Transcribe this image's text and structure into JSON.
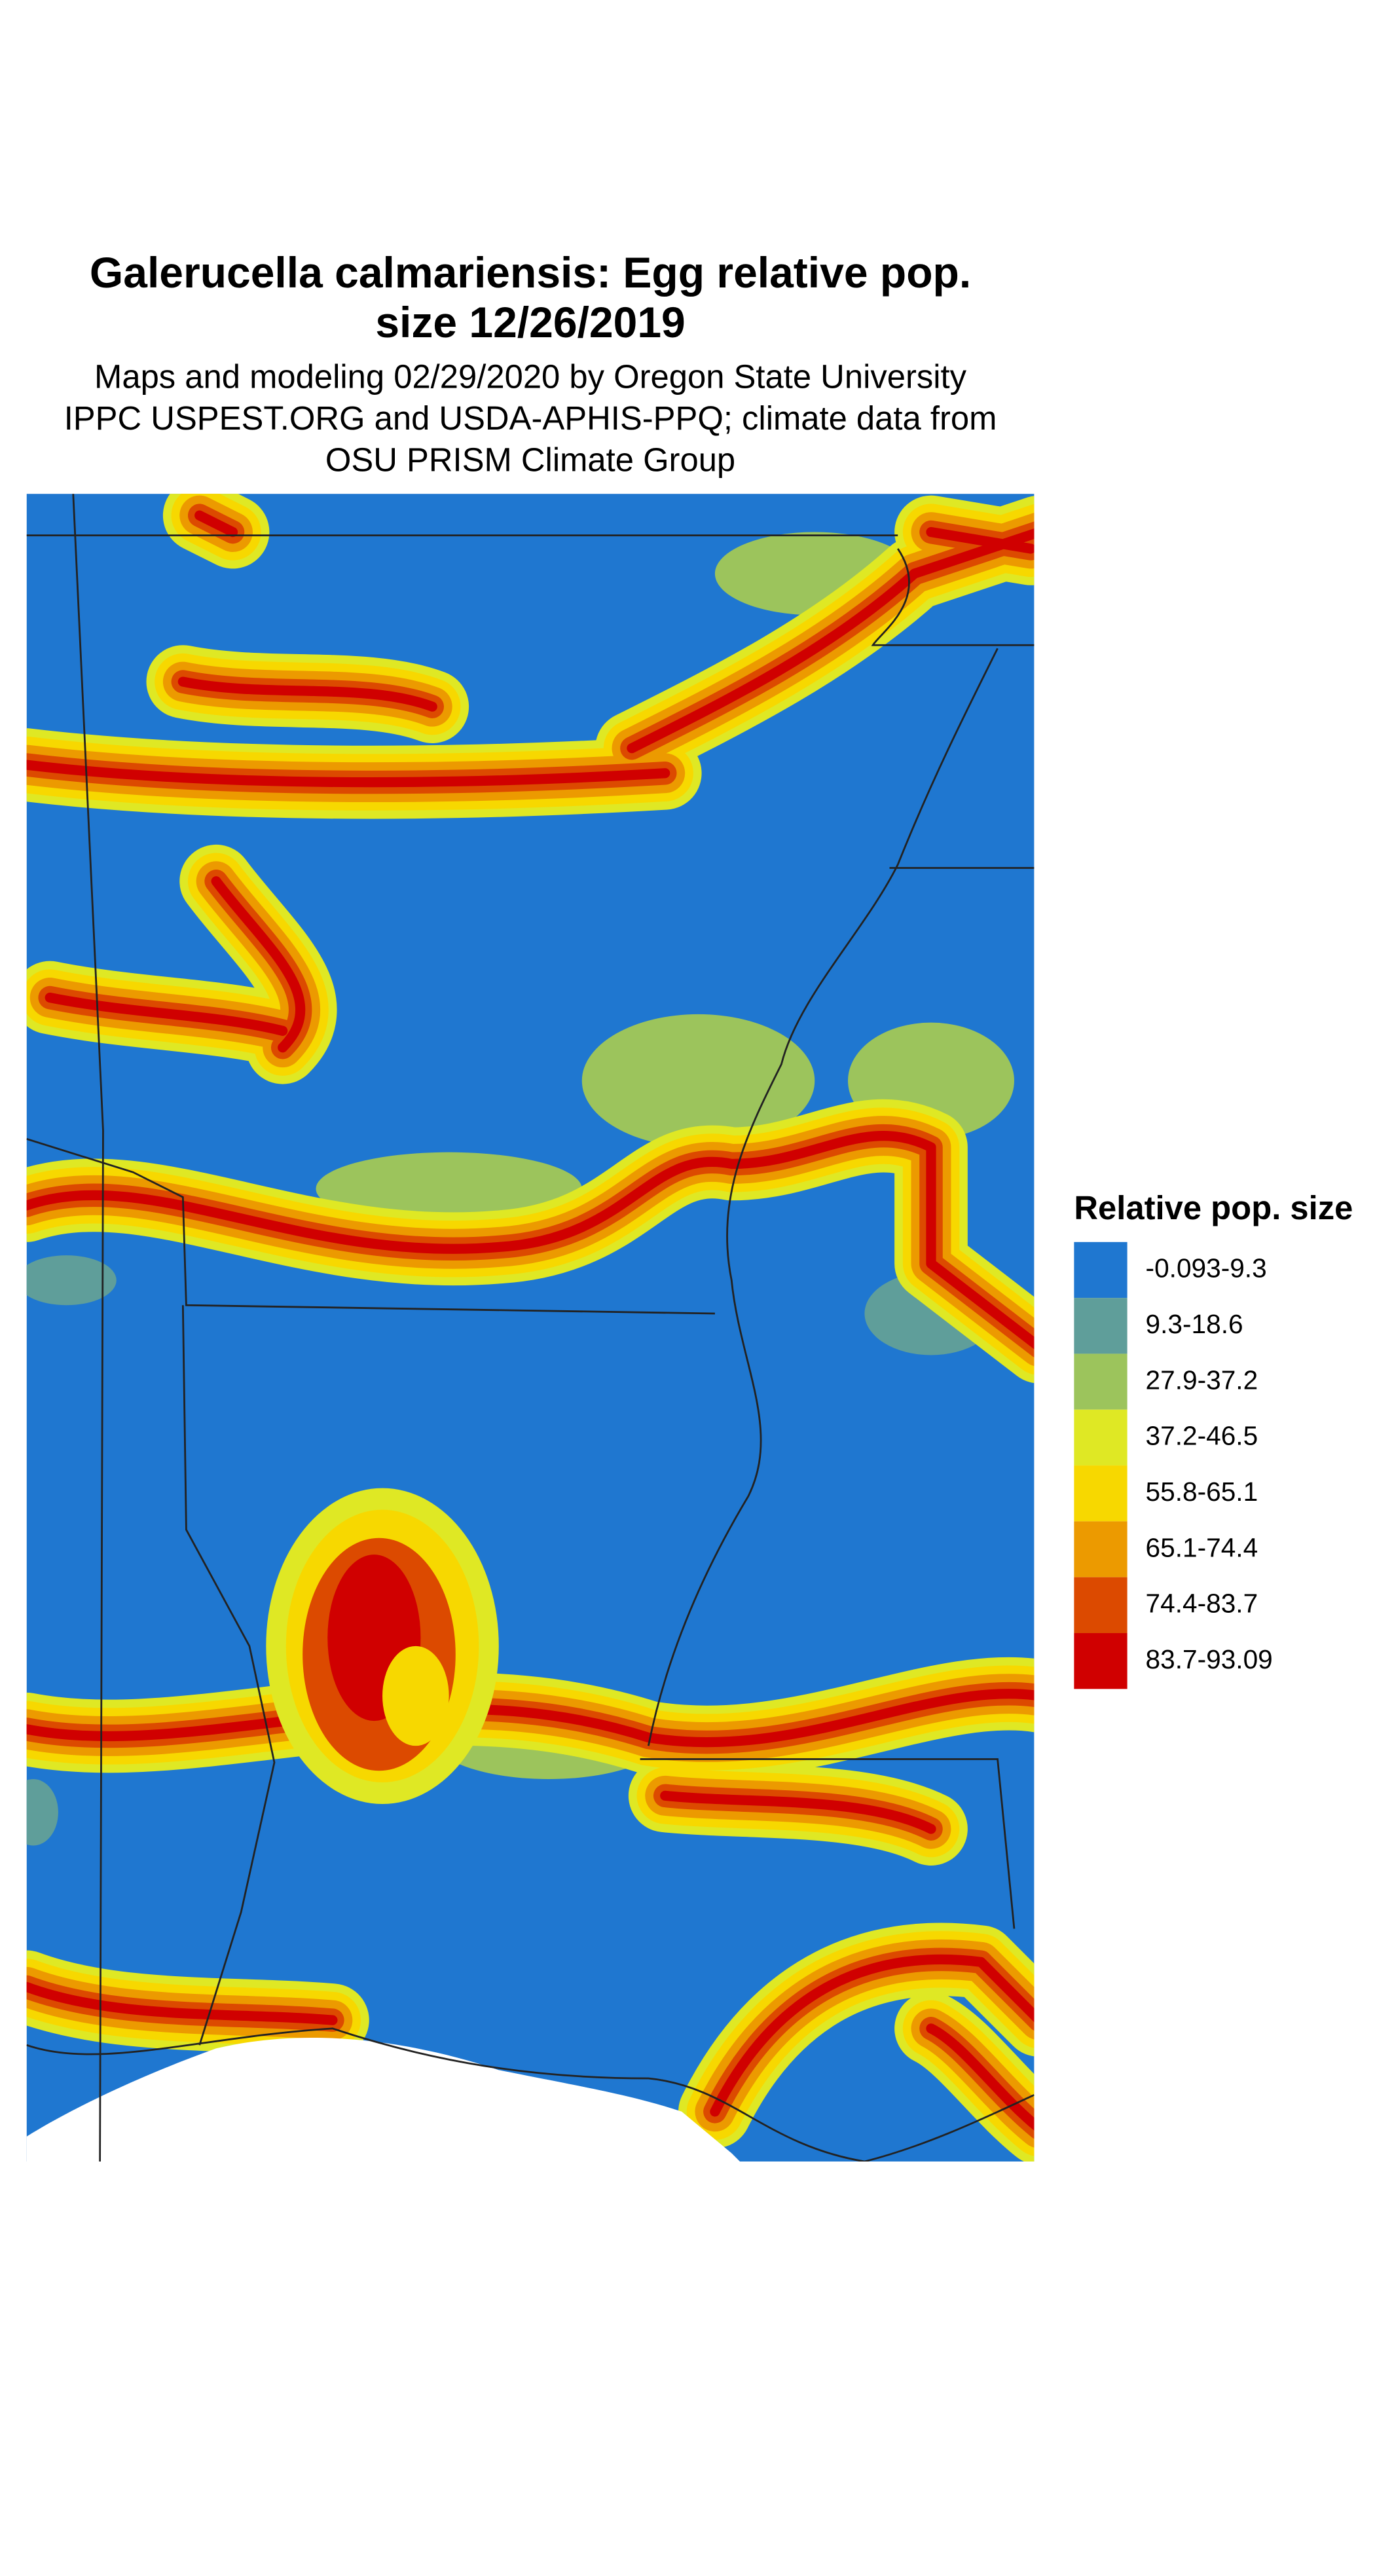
{
  "header": {
    "title_lines": [
      "Galerucella calmariensis: Egg relative pop.",
      "size 12/26/2019"
    ],
    "subtitle_lines": [
      "Maps and modeling 02/29/2020 by Oregon State University",
      "IPPC USPEST.ORG and USDA-APHIS-PPQ; climate data from",
      "OSU PRISM Climate Group"
    ]
  },
  "legend": {
    "title": "Relative pop. size",
    "items": [
      {
        "label": "-0.093-9.3",
        "color": "#1f77d0"
      },
      {
        "label": "9.3-18.6",
        "color": "#5f9e9a"
      },
      {
        "label": "27.9-37.2",
        "color": "#9cc45c"
      },
      {
        "label": "37.2-46.5",
        "color": "#dfe824"
      },
      {
        "label": "55.8-65.1",
        "color": "#f7d800"
      },
      {
        "label": "65.1-74.4",
        "color": "#ec9a00"
      },
      {
        "label": "74.4-83.7",
        "color": "#dc4a00"
      },
      {
        "label": "83.7-93.09",
        "color": "#d00000"
      }
    ]
  }
}
